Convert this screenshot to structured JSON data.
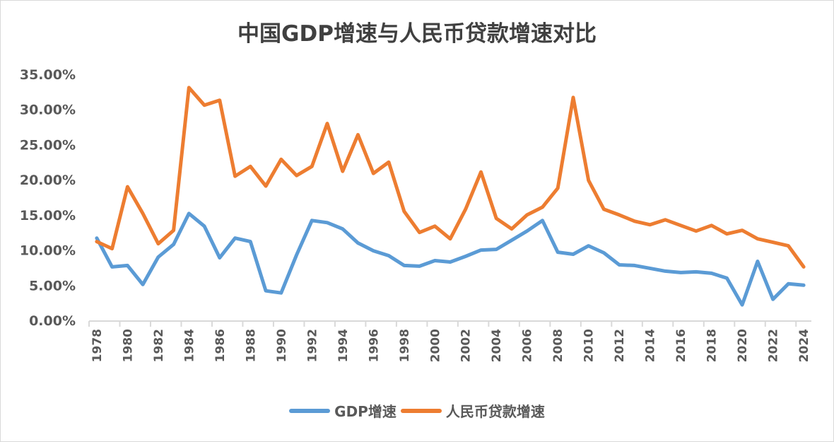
{
  "chart_data": {
    "type": "line",
    "title": "中国GDP增速与人民币贷款增速对比",
    "xlabel": "",
    "ylabel": "",
    "ylim": [
      0,
      35
    ],
    "yticks": [
      "0.00%",
      "5.00%",
      "10.00%",
      "15.00%",
      "20.00%",
      "25.00%",
      "30.00%",
      "35.00%"
    ],
    "ytick_values": [
      0,
      5,
      10,
      15,
      20,
      25,
      30,
      35
    ],
    "xtick_labels": [
      "1978",
      "1980",
      "1982",
      "1984",
      "1986",
      "1988",
      "1990",
      "1992",
      "1994",
      "1996",
      "1998",
      "2000",
      "2002",
      "2004",
      "2006",
      "2008",
      "2010",
      "2012",
      "2014",
      "2016",
      "2018",
      "2020",
      "2022",
      "2024"
    ],
    "x": [
      1978,
      1979,
      1980,
      1981,
      1982,
      1983,
      1984,
      1985,
      1986,
      1987,
      1988,
      1989,
      1990,
      1991,
      1992,
      1993,
      1994,
      1995,
      1996,
      1997,
      1998,
      1999,
      2000,
      2001,
      2002,
      2003,
      2004,
      2005,
      2006,
      2007,
      2008,
      2009,
      2010,
      2011,
      2012,
      2013,
      2014,
      2015,
      2016,
      2017,
      2018,
      2019,
      2020,
      2021,
      2022,
      2023,
      2024
    ],
    "grid": false,
    "legend_position": "bottom",
    "series": [
      {
        "name": "GDP增速",
        "color": "#5b9bd5",
        "values": [
          11.7,
          7.6,
          7.8,
          5.1,
          9.0,
          10.8,
          15.2,
          13.4,
          8.9,
          11.7,
          11.2,
          4.2,
          3.9,
          9.3,
          14.2,
          13.9,
          13.0,
          11.0,
          9.9,
          9.2,
          7.8,
          7.7,
          8.5,
          8.3,
          9.1,
          10.0,
          10.1,
          11.4,
          12.7,
          14.2,
          9.7,
          9.4,
          10.6,
          9.6,
          7.9,
          7.8,
          7.4,
          7.0,
          6.8,
          6.9,
          6.7,
          6.0,
          2.2,
          8.4,
          3.0,
          5.2,
          5.0
        ]
      },
      {
        "name": "人民币贷款增速",
        "color": "#ed7d31",
        "values": [
          11.2,
          10.2,
          19.0,
          15.2,
          10.9,
          12.8,
          33.1,
          30.6,
          31.3,
          20.5,
          21.9,
          19.1,
          22.9,
          20.6,
          21.9,
          28.0,
          21.2,
          26.4,
          20.9,
          22.5,
          15.5,
          12.5,
          13.4,
          11.6,
          15.8,
          21.1,
          14.5,
          13.0,
          15.0,
          16.1,
          18.8,
          31.7,
          19.9,
          15.8,
          15.0,
          14.1,
          13.6,
          14.3,
          13.5,
          12.7,
          13.5,
          12.3,
          12.8,
          11.6,
          11.1,
          10.6,
          7.6
        ]
      }
    ]
  }
}
